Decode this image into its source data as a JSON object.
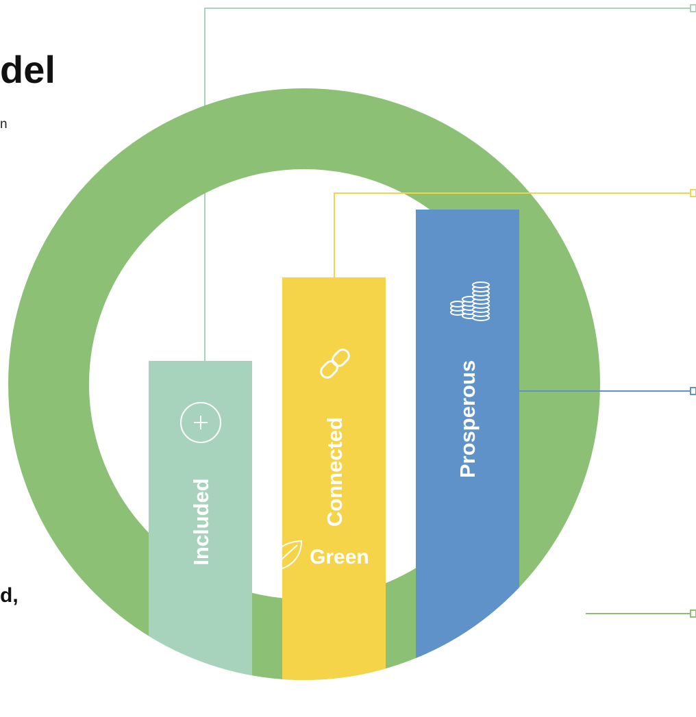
{
  "page": {
    "title_fragment": "del",
    "intro_fragment": "n",
    "bold_fragment": "d,"
  },
  "diagram": {
    "pillars": [
      {
        "label": "Included",
        "icon": "plus-circle-icon",
        "color": "#a7d3bc"
      },
      {
        "label": "Connected",
        "icon": "link-icon",
        "color": "#f5d44a"
      },
      {
        "label": "Prosperous",
        "icon": "coins-icon",
        "color": "#5f92c8"
      }
    ],
    "ring": {
      "label": "Green",
      "icon": "leaf-icon",
      "color": "#8cc075"
    },
    "connector_colors": {
      "included": "#a7d3bc",
      "connected": "#f5d44a",
      "prosperous": "#5f92c8",
      "green": "#8cc075"
    }
  }
}
